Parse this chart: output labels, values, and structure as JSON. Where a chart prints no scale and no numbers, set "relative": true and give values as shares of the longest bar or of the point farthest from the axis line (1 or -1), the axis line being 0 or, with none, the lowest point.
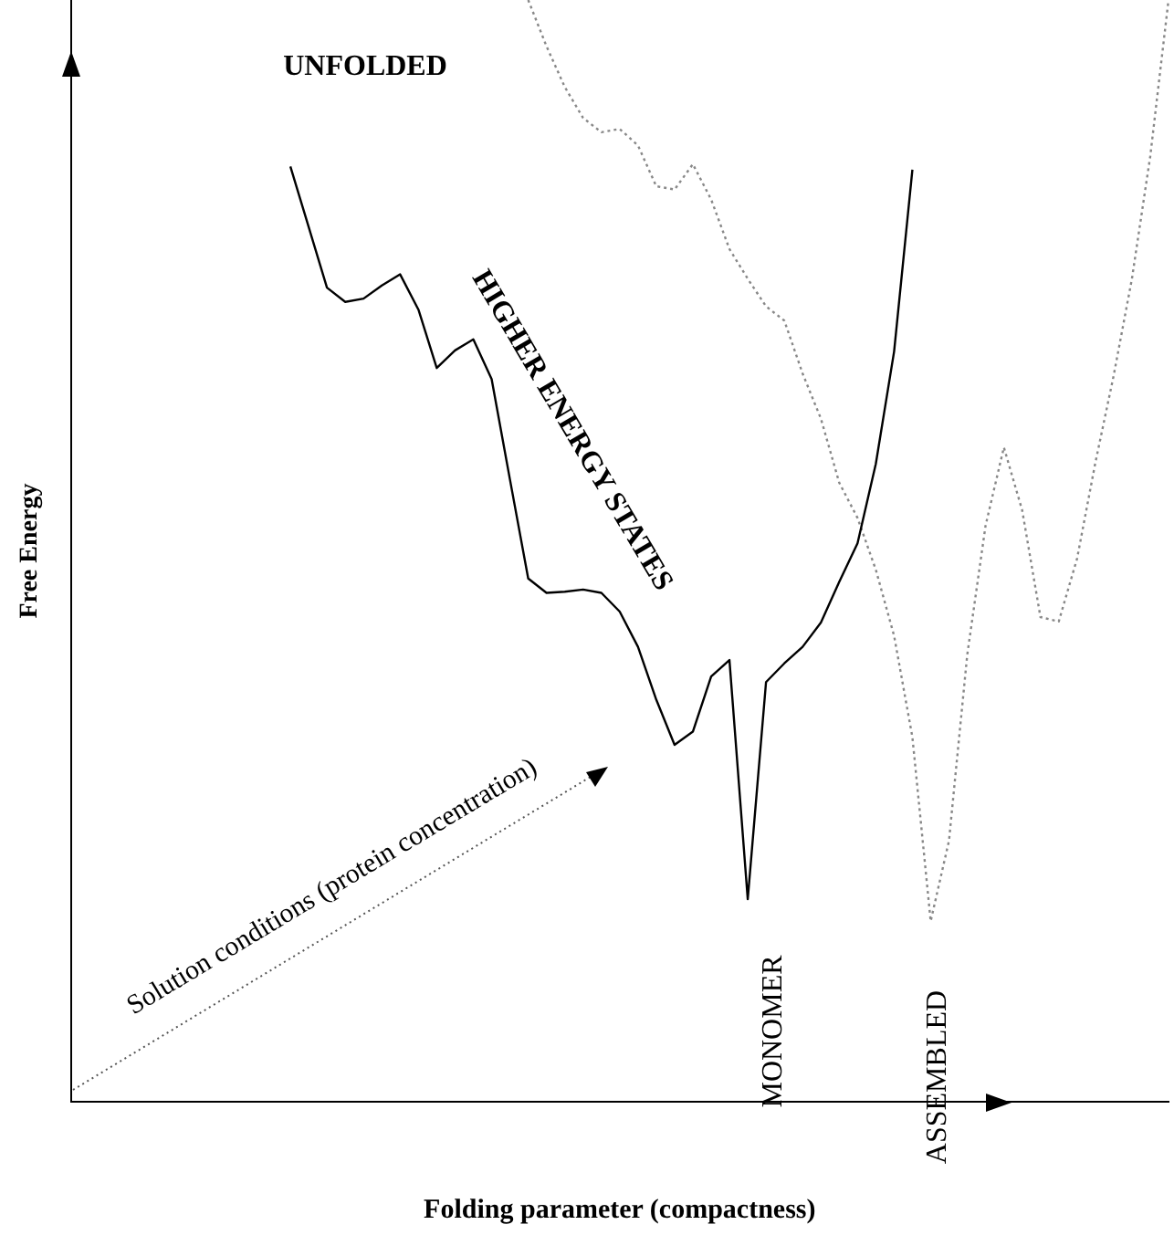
{
  "chart_data": {
    "type": "line",
    "relative": true,
    "xlabel": "Folding parameter (compactness)",
    "ylabel": "Free Energy",
    "grid": false,
    "legend": false,
    "marker": "none",
    "annotations": [
      "UNFOLDED",
      "HIGHER ENERGY STATES",
      "Solution conditions (protein concentration)",
      "MONOMER",
      "ASSEMBLED"
    ],
    "categories": [
      null,
      null,
      null,
      null,
      null,
      null,
      null,
      null,
      null,
      null,
      null,
      null,
      null,
      null,
      null,
      null,
      null,
      null,
      null,
      null,
      null,
      null,
      null,
      null,
      null,
      null,
      null,
      null,
      null,
      null,
      null,
      null,
      null,
      null,
      null,
      null,
      null,
      null,
      null,
      null,
      null,
      null,
      null,
      null,
      null,
      null,
      null,
      null,
      null,
      null,
      null,
      null,
      null,
      null,
      null,
      null,
      null,
      null,
      null,
      null,
      null
    ],
    "series": [
      {
        "color": "#000000",
        "line_style": "solid",
        "values": [
          null,
          null,
          null,
          null,
          null,
          null,
          null,
          null,
          null,
          null,
          null,
          null,
          0.849,
          0.794,
          0.739,
          0.726,
          0.729,
          0.741,
          0.751,
          0.719,
          0.666,
          0.682,
          0.692,
          0.656,
          0.565,
          0.475,
          0.462,
          0.463,
          0.465,
          0.462,
          0.445,
          0.413,
          0.365,
          0.324,
          0.336,
          0.386,
          0.401,
          0.184,
          0.381,
          0.398,
          0.413,
          0.435,
          0.472,
          0.507,
          0.579,
          0.681,
          0.846,
          null,
          null,
          null,
          null,
          null,
          null,
          null,
          null,
          null,
          null,
          null,
          null,
          null,
          null
        ]
      },
      {
        "color": "#888888",
        "line_style": "dotted",
        "values": [
          null,
          null,
          null,
          null,
          null,
          null,
          null,
          null,
          null,
          null,
          null,
          null,
          null,
          null,
          null,
          null,
          null,
          null,
          null,
          null,
          null,
          null,
          null,
          null,
          null,
          1.0,
          0.958,
          0.921,
          0.893,
          0.88,
          0.883,
          0.868,
          0.831,
          0.828,
          0.851,
          0.819,
          0.774,
          0.747,
          0.722,
          0.709,
          0.661,
          0.62,
          0.562,
          0.53,
          0.483,
          0.423,
          0.331,
          0.164,
          0.237,
          0.406,
          0.523,
          0.594,
          0.537,
          0.44,
          0.436,
          0.493,
          0.58,
          0.659,
          0.747,
          0.858,
          1.0
        ]
      }
    ]
  }
}
